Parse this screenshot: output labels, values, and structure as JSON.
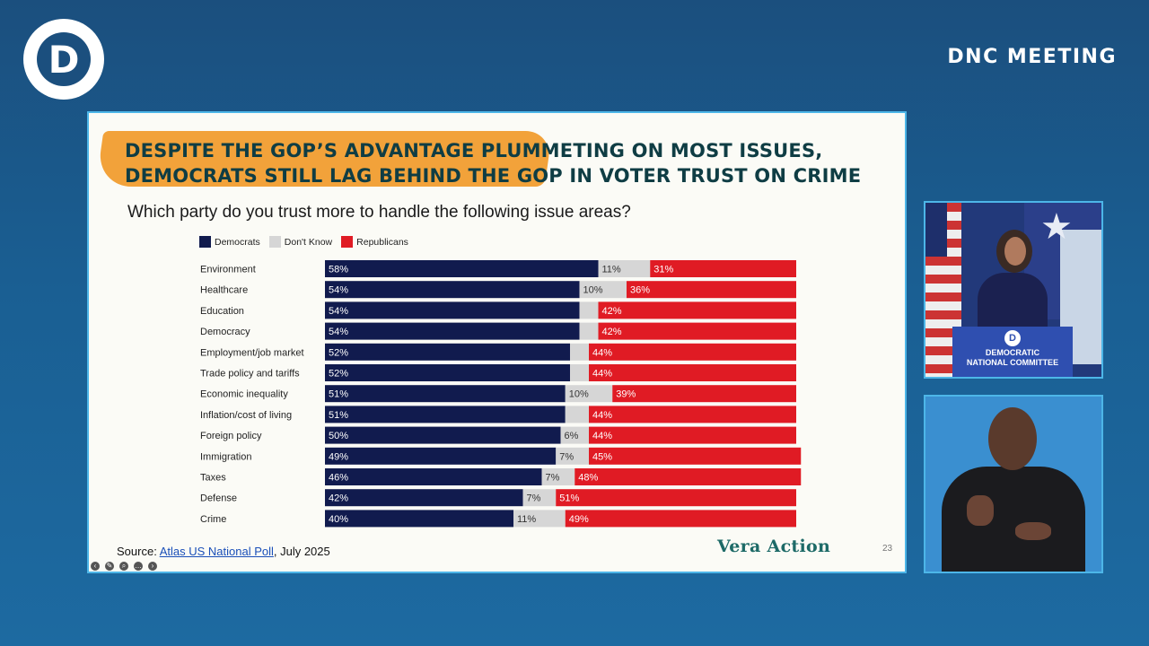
{
  "header": {
    "logo_letter": "D",
    "event_title": "DNC MEETING"
  },
  "slide": {
    "headline_line1": "DESPITE THE GOP’S ADVANTAGE PLUMMETING ON MOST ISSUES,",
    "headline_line2": "DEMOCRATS STILL LAG BEHIND THE GOP IN VOTER TRUST ON CRIME",
    "question": "Which party do you trust more to handle the following issue areas?",
    "source_prefix": "Source: ",
    "source_link": "Atlas US National Poll",
    "source_suffix": ", July 2025",
    "brand": "Vera Action",
    "page_number": "23",
    "accent_color": "#f2a23a"
  },
  "chart_data": {
    "type": "bar",
    "orientation": "horizontal",
    "stacked": true,
    "title": "Which party do you trust more to handle the following issue areas?",
    "categories": [
      "Environment",
      "Healthcare",
      "Education",
      "Democracy",
      "Employment/job market",
      "Trade policy and tariffs",
      "Economic inequality",
      "Inflation/cost of living",
      "Foreign policy",
      "Immigration",
      "Taxes",
      "Defense",
      "Crime"
    ],
    "series": [
      {
        "name": "Democrats",
        "color": "#111b4e",
        "values": [
          58,
          54,
          54,
          54,
          52,
          52,
          51,
          51,
          50,
          49,
          46,
          42,
          40
        ],
        "labels": [
          "58%",
          "54%",
          "54%",
          "54%",
          "52%",
          "52%",
          "51%",
          "51%",
          "50%",
          "49%",
          "46%",
          "42%",
          "40%"
        ]
      },
      {
        "name": "Don't Know",
        "color": "#d6d6d6",
        "values": [
          11,
          10,
          4,
          4,
          4,
          4,
          10,
          5,
          6,
          7,
          7,
          7,
          11
        ],
        "labels": [
          "11%",
          "10%",
          "",
          "",
          "",
          "",
          "10%",
          "",
          "6%",
          "7%",
          "7%",
          "7%",
          "11%"
        ]
      },
      {
        "name": "Republicans",
        "color": "#e01b24",
        "values": [
          31,
          36,
          42,
          42,
          44,
          44,
          39,
          44,
          44,
          45,
          48,
          51,
          49
        ],
        "labels": [
          "31%",
          "36%",
          "42%",
          "42%",
          "44%",
          "44%",
          "39%",
          "44%",
          "44%",
          "45%",
          "48%",
          "51%",
          "49%"
        ]
      }
    ],
    "xlim": [
      0,
      100
    ],
    "legend_position": "top-left"
  },
  "toolbar": {
    "icons": [
      "previous-icon",
      "pen-icon",
      "zoom-icon",
      "more-icon",
      "next-icon"
    ]
  },
  "video_feeds": {
    "speaker_podium_line1": "DEMOCRATIC",
    "speaker_podium_line2": "NATIONAL COMMITTEE"
  }
}
